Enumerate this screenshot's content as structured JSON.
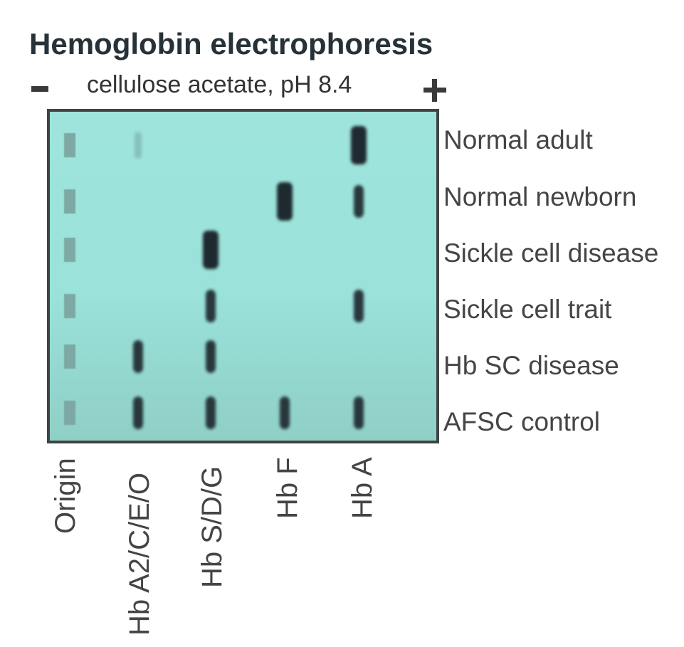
{
  "title": "Hemoglobin electrophoresis",
  "subtitle": "cellulose acetate, pH 8.4",
  "electrodes": {
    "negative": "-",
    "positive": "+"
  },
  "colors": {
    "gel": "#9ee4dc",
    "band": "#1f2a30",
    "origin_well": "#7da8a3",
    "border": "#404244"
  },
  "columns": [
    "Origin",
    "Hb A2/C/E/O",
    "Hb S/D/G",
    "Hb F",
    "Hb A"
  ],
  "rows": [
    {
      "label": "Normal adult",
      "bands": [
        {
          "column": "Hb A2/C/E/O",
          "intensity": "faint"
        },
        {
          "column": "Hb A",
          "intensity": "strong"
        }
      ]
    },
    {
      "label": "Normal newborn",
      "bands": [
        {
          "column": "Hb F",
          "intensity": "strong"
        },
        {
          "column": "Hb A",
          "intensity": "medium"
        }
      ]
    },
    {
      "label": "Sickle cell disease",
      "bands": [
        {
          "column": "Hb S/D/G",
          "intensity": "strong"
        }
      ]
    },
    {
      "label": "Sickle cell trait",
      "bands": [
        {
          "column": "Hb S/D/G",
          "intensity": "medium"
        },
        {
          "column": "Hb A",
          "intensity": "medium"
        }
      ]
    },
    {
      "label": "Hb SC disease",
      "bands": [
        {
          "column": "Hb A2/C/E/O",
          "intensity": "medium"
        },
        {
          "column": "Hb S/D/G",
          "intensity": "medium"
        }
      ]
    },
    {
      "label": "AFSC control",
      "bands": [
        {
          "column": "Hb A2/C/E/O",
          "intensity": "medium"
        },
        {
          "column": "Hb S/D/G",
          "intensity": "medium"
        },
        {
          "column": "Hb F",
          "intensity": "medium"
        },
        {
          "column": "Hb A",
          "intensity": "medium"
        }
      ]
    }
  ]
}
